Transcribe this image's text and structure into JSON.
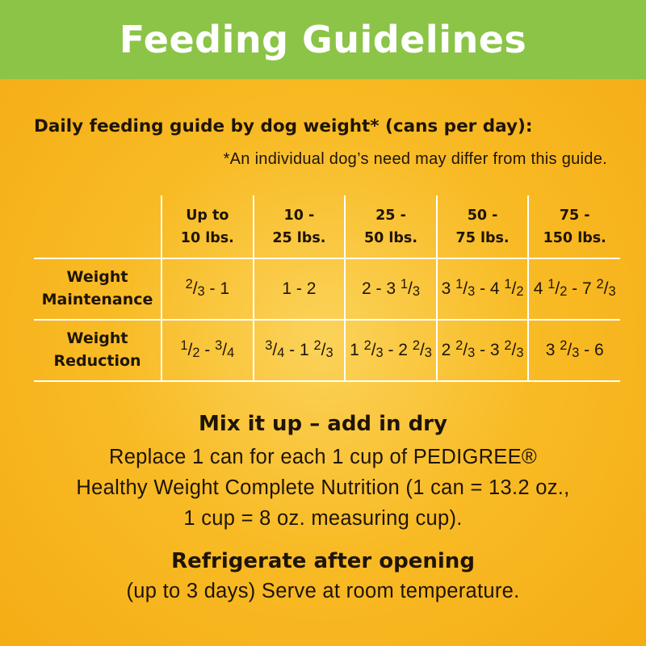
{
  "banner": {
    "title": "Feeding Guidelines"
  },
  "guide": {
    "subtitle": "Daily feeding guide by dog weight* (cans per day):",
    "disclaimer": "*An individual dog’s need may differ from this guide."
  },
  "table": {
    "columns": [
      "Up to\n10 lbs.",
      "10 -\n25 lbs.",
      "25 -\n50 lbs.",
      "50 -\n75 lbs.",
      "75 -\n150 lbs."
    ],
    "rows": [
      {
        "label": "Weight\nMaintenance",
        "values": [
          "2/3 - 1",
          "1 - 2",
          "2 - 3 1/3",
          "3 1/3 - 4 1/2",
          "4 1/2 - 7 2/3"
        ]
      },
      {
        "label": "Weight\nReduction",
        "values": [
          "1/2 - 3/4",
          "3/4 - 1 2/3",
          "1 2/3 - 2 2/3",
          "2 2/3 - 3 2/3",
          "3 2/3 - 6"
        ]
      }
    ]
  },
  "mix": {
    "title": "Mix it up – add in dry",
    "lines": [
      "Replace 1 can for each 1 cup of PEDIGREE®",
      "Healthy Weight Complete Nutrition (1 can = 13.2 oz.,",
      "1 cup = 8 oz. measuring cup)."
    ]
  },
  "storage": {
    "title": "Refrigerate after opening",
    "body": "(up to 3 days) Serve at room temperature."
  },
  "colors": {
    "banner": "#8bc447",
    "background": "#f8bb25",
    "text": "#1e1408",
    "grid": "#ffffff"
  }
}
